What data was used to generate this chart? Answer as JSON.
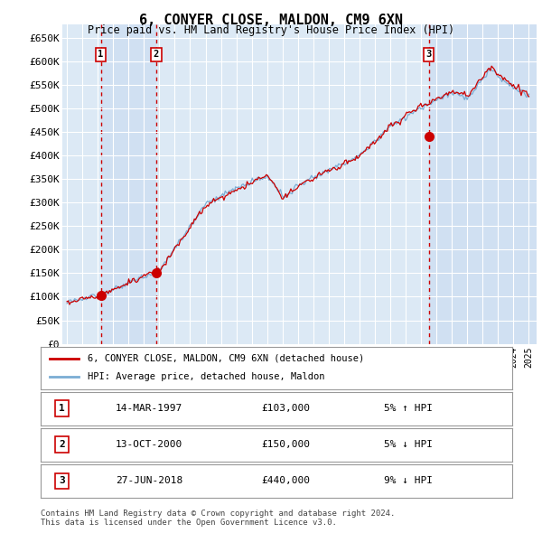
{
  "title": "6, CONYER CLOSE, MALDON, CM9 6XN",
  "subtitle": "Price paid vs. HM Land Registry's House Price Index (HPI)",
  "ylabel_ticks": [
    "£0",
    "£50K",
    "£100K",
    "£150K",
    "£200K",
    "£250K",
    "£300K",
    "£350K",
    "£400K",
    "£450K",
    "£500K",
    "£550K",
    "£600K",
    "£650K"
  ],
  "ytick_values": [
    0,
    50000,
    100000,
    150000,
    200000,
    250000,
    300000,
    350000,
    400000,
    450000,
    500000,
    550000,
    600000,
    650000
  ],
  "ylim": [
    0,
    680000
  ],
  "xlim_start": 1994.7,
  "xlim_end": 2025.5,
  "fig_bg_color": "#ffffff",
  "plot_bg_color": "#dce9f5",
  "shade_bg_color": "#c8daf0",
  "grid_color": "#ffffff",
  "hpi_line_color": "#7aadd4",
  "price_line_color": "#cc0000",
  "transaction_marker_color": "#cc0000",
  "vline_color": "#cc0000",
  "transactions": [
    {
      "label": "1",
      "date_str": "14-MAR-1997",
      "year": 1997.2,
      "price": 103000
    },
    {
      "label": "2",
      "date_str": "13-OCT-2000",
      "year": 2000.8,
      "price": 150000
    },
    {
      "label": "3",
      "date_str": "27-JUN-2018",
      "year": 2018.5,
      "price": 440000
    }
  ],
  "footer": "Contains HM Land Registry data © Crown copyright and database right 2024.\nThis data is licensed under the Open Government Licence v3.0.",
  "legend_label1": "6, CONYER CLOSE, MALDON, CM9 6XN (detached house)",
  "legend_label2": "HPI: Average price, detached house, Maldon",
  "table_rows": [
    {
      "num": "1",
      "date": "14-MAR-1997",
      "price": "£103,000",
      "pct": "5% ↑ HPI"
    },
    {
      "num": "2",
      "date": "13-OCT-2000",
      "price": "£150,000",
      "pct": "5% ↓ HPI"
    },
    {
      "num": "3",
      "date": "27-JUN-2018",
      "price": "£440,000",
      "pct": "9% ↓ HPI"
    }
  ]
}
